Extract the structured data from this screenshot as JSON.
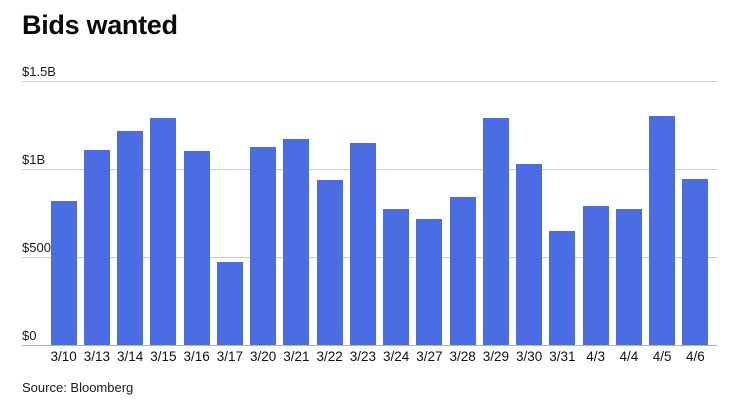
{
  "header": {
    "title": "Bids wanted"
  },
  "chart_data": {
    "type": "bar",
    "title": "Bids wanted",
    "categories": [
      "3/10",
      "3/13",
      "3/14",
      "3/15",
      "3/16",
      "3/17",
      "3/20",
      "3/21",
      "3/22",
      "3/23",
      "3/24",
      "3/27",
      "3/28",
      "3/29",
      "3/30",
      "3/31",
      "4/3",
      "4/4",
      "4/5",
      "4/6"
    ],
    "values_millions_usd": [
      820,
      1110,
      1215,
      1290,
      1100,
      470,
      1125,
      1170,
      935,
      1150,
      770,
      715,
      840,
      1290,
      1030,
      645,
      790,
      775,
      1300,
      945
    ],
    "xlabel": "",
    "ylabel": "",
    "ylim": [
      0,
      1500
    ],
    "y_axis": {
      "max": 1500,
      "ticks": [
        {
          "label": "$1.5B",
          "value": 1500
        },
        {
          "label": "$1B",
          "value": 1000
        },
        {
          "label": "$500M",
          "value": 500
        },
        {
          "label": "$0",
          "value": 0
        }
      ]
    },
    "grid": "horizontal-on",
    "legend": "none",
    "bar_color": "#4a6de4"
  },
  "footer": {
    "source": "Source: Bloomberg"
  }
}
